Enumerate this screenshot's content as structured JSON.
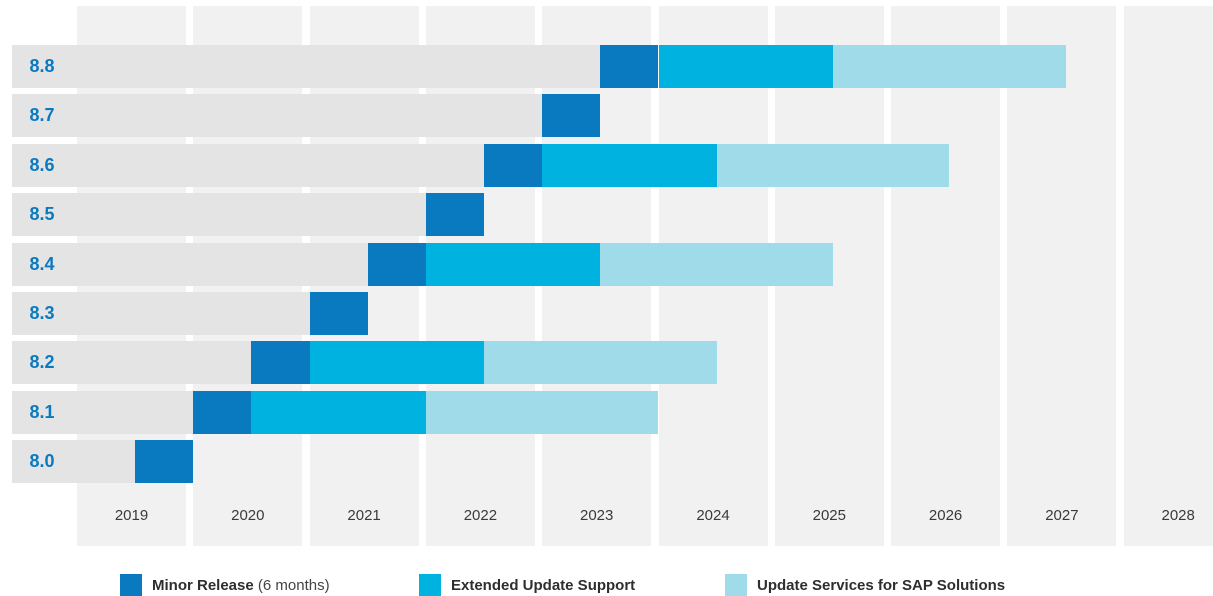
{
  "chart_data": {
    "type": "bar",
    "subtype": "gantt-timeline",
    "title": "",
    "xlabel": "",
    "ylabel": "",
    "x_ticks": [
      "2019",
      "2020",
      "2021",
      "2022",
      "2023",
      "2024",
      "2025",
      "2026",
      "2027",
      "2028"
    ],
    "x_range": [
      2019,
      2029
    ],
    "categories": [
      "8.8",
      "8.7",
      "8.6",
      "8.5",
      "8.4",
      "8.3",
      "8.2",
      "8.1",
      "8.0"
    ],
    "colors": {
      "minor": "#0a7ac0",
      "eus": "#00b2e0",
      "sap": "#a0dbea",
      "column_bg": "#f1f1f2",
      "history_bg": "#e4e4e4",
      "label": "#0a7ac0"
    },
    "legend": [
      {
        "key": "minor",
        "label": "Minor Release",
        "note": "(6 months)"
      },
      {
        "key": "eus",
        "label": "Extended Update Support",
        "note": ""
      },
      {
        "key": "sap",
        "label": "Update Services for SAP Solutions",
        "note": ""
      }
    ],
    "legend_position": "bottom",
    "grid": false,
    "releases": [
      {
        "version": "8.8",
        "segments": [
          {
            "series": "minor",
            "start": 2023.5,
            "end": 2024.0
          },
          {
            "series": "eus",
            "start": 2024.0,
            "end": 2025.5
          },
          {
            "series": "sap",
            "start": 2025.5,
            "end": 2027.5
          }
        ]
      },
      {
        "version": "8.7",
        "segments": [
          {
            "series": "minor",
            "start": 2023.0,
            "end": 2023.5
          }
        ]
      },
      {
        "version": "8.6",
        "segments": [
          {
            "series": "minor",
            "start": 2022.5,
            "end": 2023.0
          },
          {
            "series": "eus",
            "start": 2023.0,
            "end": 2024.5
          },
          {
            "series": "sap",
            "start": 2024.5,
            "end": 2026.5
          }
        ]
      },
      {
        "version": "8.5",
        "segments": [
          {
            "series": "minor",
            "start": 2022.0,
            "end": 2022.5
          }
        ]
      },
      {
        "version": "8.4",
        "segments": [
          {
            "series": "minor",
            "start": 2021.5,
            "end": 2022.0
          },
          {
            "series": "eus",
            "start": 2022.0,
            "end": 2023.5
          },
          {
            "series": "sap",
            "start": 2023.5,
            "end": 2025.5
          }
        ]
      },
      {
        "version": "8.3",
        "segments": [
          {
            "series": "minor",
            "start": 2021.0,
            "end": 2021.5
          }
        ]
      },
      {
        "version": "8.2",
        "segments": [
          {
            "series": "minor",
            "start": 2020.5,
            "end": 2021.0
          },
          {
            "series": "eus",
            "start": 2021.0,
            "end": 2022.5
          },
          {
            "series": "sap",
            "start": 2022.5,
            "end": 2024.5
          }
        ]
      },
      {
        "version": "8.1",
        "segments": [
          {
            "series": "minor",
            "start": 2020.0,
            "end": 2020.5
          },
          {
            "series": "eus",
            "start": 2020.5,
            "end": 2022.0
          },
          {
            "series": "sap",
            "start": 2022.0,
            "end": 2024.0
          }
        ]
      },
      {
        "version": "8.0",
        "segments": [
          {
            "series": "minor",
            "start": 2019.5,
            "end": 2020.0
          }
        ]
      }
    ]
  }
}
